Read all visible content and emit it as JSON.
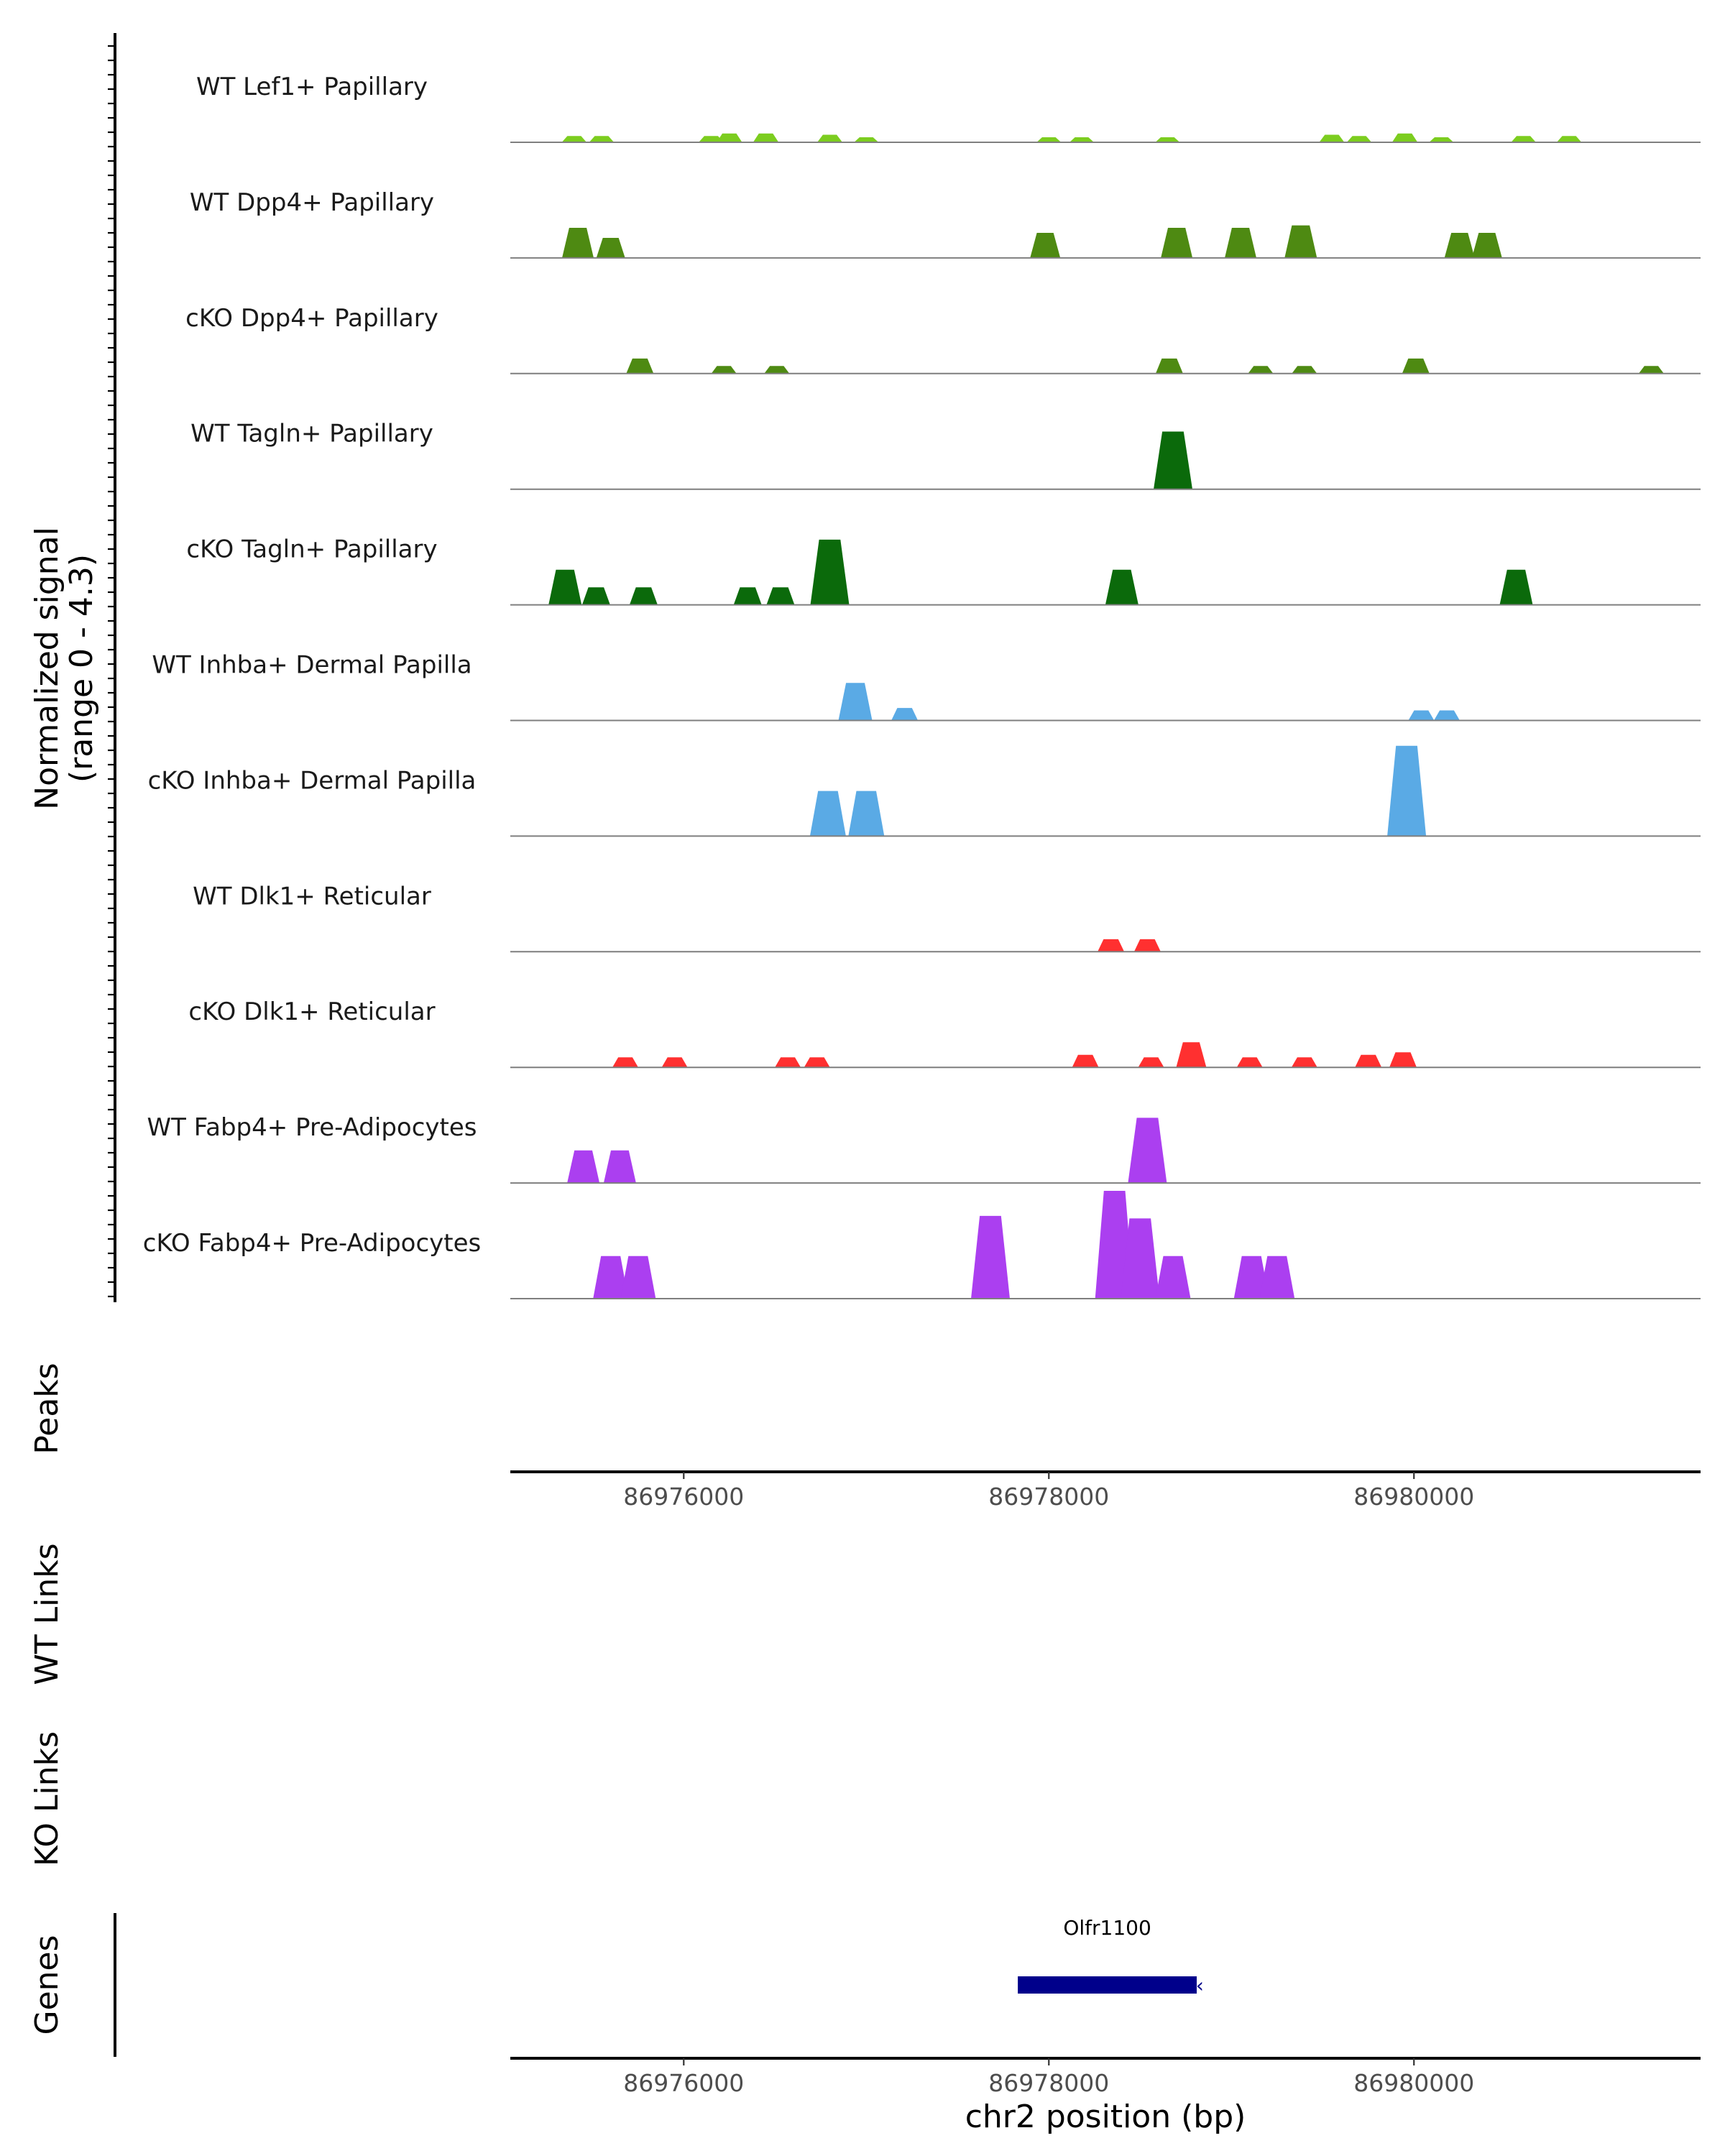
{
  "chart_data": {
    "type": "area",
    "title": "",
    "ylabel": "Normalized signal",
    "ylabel_range": "(range 0 - 4.3)",
    "ylim": [
      0,
      4.3
    ],
    "xlabel": "chr2 position (bp)",
    "xlim": [
      86975050,
      86981570
    ],
    "x_ticks": [
      "86976000",
      "86978000",
      "86980000"
    ],
    "tracks": [
      {
        "name": "WT Lef1+ Papillary",
        "color": "#7ccd1f",
        "peaks": [
          [
            86975400,
            0.25
          ],
          [
            86975550,
            0.25
          ],
          [
            86976150,
            0.25
          ],
          [
            86976250,
            0.35
          ],
          [
            86976450,
            0.35
          ],
          [
            86976800,
            0.3
          ],
          [
            86977000,
            0.2
          ],
          [
            86978000,
            0.2
          ],
          [
            86978180,
            0.2
          ],
          [
            86978650,
            0.2
          ],
          [
            86979550,
            0.3
          ],
          [
            86979700,
            0.25
          ],
          [
            86979950,
            0.35
          ],
          [
            86980150,
            0.2
          ],
          [
            86980600,
            0.25
          ],
          [
            86980850,
            0.25
          ]
        ]
      },
      {
        "name": "WT Dpp4+ Papillary",
        "color": "#4e8a12",
        "peaks": [
          [
            86975420,
            1.2
          ],
          [
            86975600,
            0.8
          ],
          [
            86977980,
            1.0
          ],
          [
            86978700,
            1.2
          ],
          [
            86979050,
            1.2
          ],
          [
            86979380,
            1.3
          ],
          [
            86980250,
            1.0
          ],
          [
            86980400,
            1.0
          ]
        ]
      },
      {
        "name": "cKO Dpp4+ Papillary",
        "color": "#4e8a12",
        "peaks": [
          [
            86975760,
            0.6
          ],
          [
            86976220,
            0.3
          ],
          [
            86976510,
            0.3
          ],
          [
            86978660,
            0.6
          ],
          [
            86979160,
            0.3
          ],
          [
            86979400,
            0.3
          ],
          [
            86980010,
            0.6
          ],
          [
            86981300,
            0.3
          ]
        ]
      },
      {
        "name": "WT Tagln+ Papillary",
        "color": "#0b6a0b",
        "peaks": [
          [
            86978680,
            2.3
          ]
        ]
      },
      {
        "name": "cKO Tagln+ Papillary",
        "color": "#0b6a0b",
        "peaks": [
          [
            86975350,
            1.4
          ],
          [
            86975520,
            0.7
          ],
          [
            86975780,
            0.7
          ],
          [
            86976350,
            0.7
          ],
          [
            86976530,
            0.7
          ],
          [
            86976800,
            2.6
          ],
          [
            86978400,
            1.4
          ],
          [
            86980560,
            1.4
          ]
        ]
      },
      {
        "name": "WT Inhba+ Dermal Papilla",
        "color": "#5aaae5",
        "peaks": [
          [
            86976940,
            1.5
          ],
          [
            86977210,
            0.5
          ],
          [
            86980040,
            0.4
          ],
          [
            86980180,
            0.4
          ]
        ]
      },
      {
        "name": "cKO Inhba+ Dermal Papilla",
        "color": "#5aaae5",
        "peaks": [
          [
            86976790,
            1.8
          ],
          [
            86977000,
            1.8
          ],
          [
            86979960,
            3.6
          ]
        ]
      },
      {
        "name": "WT Dlk1+ Reticular",
        "color": "#ff3030",
        "peaks": [
          [
            86978340,
            0.5
          ],
          [
            86978540,
            0.5
          ]
        ]
      },
      {
        "name": "cKO Dlk1+ Reticular",
        "color": "#ff3030",
        "peaks": [
          [
            86975680,
            0.4
          ],
          [
            86975950,
            0.4
          ],
          [
            86976570,
            0.4
          ],
          [
            86976730,
            0.4
          ],
          [
            86978200,
            0.5
          ],
          [
            86978560,
            0.4
          ],
          [
            86978780,
            1.0
          ],
          [
            86979100,
            0.4
          ],
          [
            86979400,
            0.4
          ],
          [
            86979750,
            0.5
          ],
          [
            86979940,
            0.6
          ]
        ]
      },
      {
        "name": "WT Fabp4+ Pre-Adipocytes",
        "color": "#ab3ff0",
        "peaks": [
          [
            86975450,
            1.3
          ],
          [
            86975650,
            1.3
          ],
          [
            86978540,
            2.6
          ]
        ]
      },
      {
        "name": "cKO Fabp4+ Pre-Adipocytes",
        "color": "#ab3ff0",
        "peaks": [
          [
            86975600,
            1.7
          ],
          [
            86975750,
            1.7
          ],
          [
            86977680,
            3.3
          ],
          [
            86978360,
            4.3
          ],
          [
            86978500,
            3.2
          ],
          [
            86978680,
            1.7
          ],
          [
            86979110,
            1.7
          ],
          [
            86979250,
            1.7
          ]
        ]
      }
    ],
    "panels": [
      "Peaks",
      "WT Links",
      "KO Links",
      "Genes"
    ],
    "genes": [
      {
        "name": "Olfr1100",
        "start": 86977830,
        "end": 86978810,
        "strand": "-",
        "color": "#00008b"
      }
    ]
  }
}
